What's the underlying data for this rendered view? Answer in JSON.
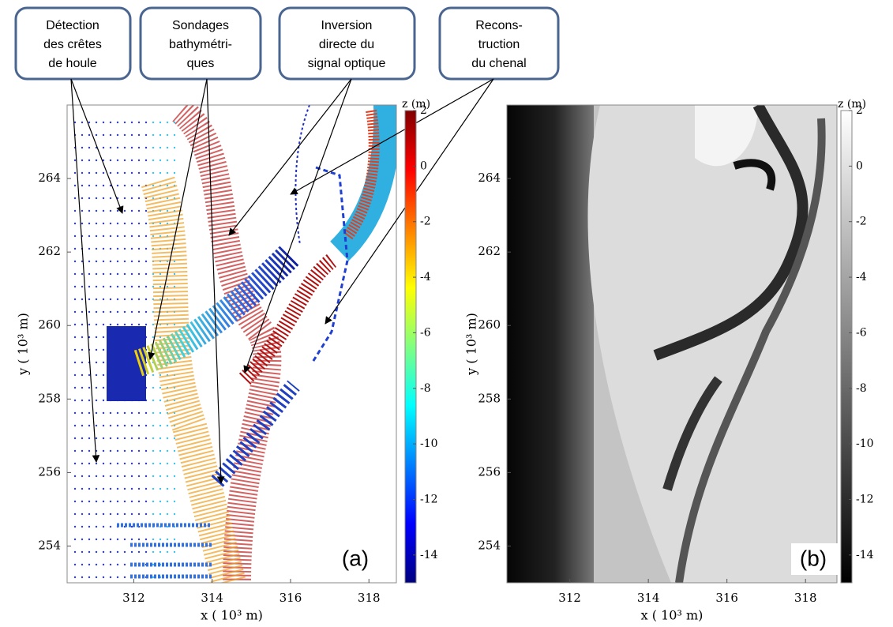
{
  "callouts": [
    [
      "Détection",
      "des crêtes",
      "de houle"
    ],
    [
      "Sondages",
      "bathymétri-",
      "ques"
    ],
    [
      "Inversion",
      "directe du",
      "signal optique"
    ],
    [
      "Recons-",
      "truction",
      "du chenal"
    ]
  ],
  "chart_data": [
    {
      "type": "scatter",
      "panel_label": "(a)",
      "xlabel": "x ( 10³ m)",
      "ylabel": "y ( 10³ m)",
      "xlim": [
        310.3,
        318.7
      ],
      "ylim": [
        253,
        266
      ],
      "xticks": [
        312,
        314,
        316,
        318
      ],
      "yticks": [
        254,
        256,
        258,
        260,
        262,
        264
      ],
      "colorbar": {
        "label": "z (m)",
        "lim": [
          -15,
          2
        ],
        "ticks": [
          2,
          0,
          -2,
          -4,
          -6,
          -8,
          -10,
          -12,
          -14
        ],
        "colormap": "jet"
      }
    },
    {
      "type": "image",
      "panel_label": "(b)",
      "xlabel": "x ( 10³ m)",
      "ylabel": "y ( 10³ m)",
      "xlim": [
        310.4,
        318.8
      ],
      "ylim": [
        253,
        266
      ],
      "xticks": [
        312,
        314,
        316,
        318
      ],
      "yticks": [
        254,
        256,
        258,
        260,
        262,
        264
      ],
      "colorbar": {
        "label": "z (m)",
        "lim": [
          -15,
          2
        ],
        "ticks": [
          2,
          0,
          -2,
          -4,
          -6,
          -8,
          -10,
          -12,
          -14
        ],
        "colormap": "gray"
      }
    }
  ]
}
